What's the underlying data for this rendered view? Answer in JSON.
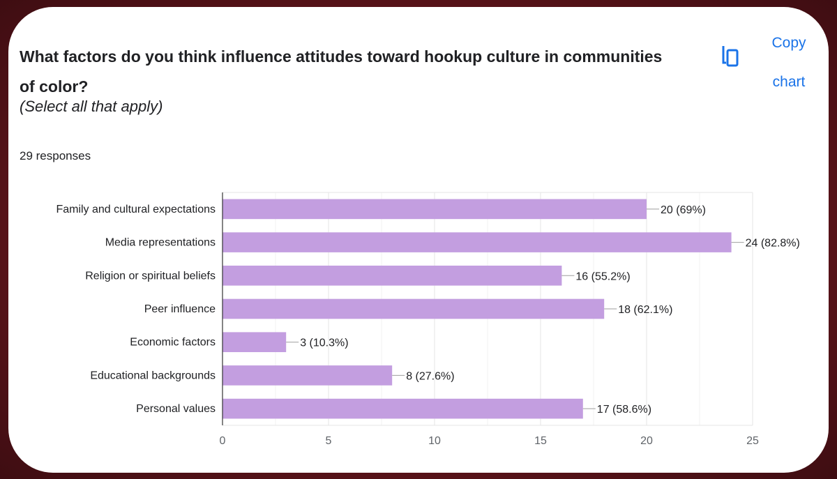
{
  "question": {
    "title": "What factors do you think influence attitudes toward hookup culture in communities of color?",
    "subtitle": "(Select all that apply)",
    "responses": "29 responses"
  },
  "copy_chart": {
    "label": "Copy chart",
    "icon": "copy-icon",
    "color": "#1a73e8"
  },
  "chart_data": {
    "type": "bar",
    "orientation": "horizontal",
    "categories": [
      "Family and cultural expectations",
      "Media representations",
      "Religion or spiritual beliefs",
      "Peer influence",
      "Economic factors",
      "Educational backgrounds",
      "Personal values"
    ],
    "values": [
      20,
      24,
      16,
      18,
      3,
      8,
      17
    ],
    "data_labels": [
      "20 (69%)",
      "24 (82.8%)",
      "16 (55.2%)",
      "18 (62.1%)",
      "3 (10.3%)",
      "8 (27.6%)",
      "17 (58.6%)"
    ],
    "xlim": [
      0,
      25
    ],
    "xticks": [
      0,
      5,
      10,
      15,
      20,
      25
    ],
    "grid": true,
    "bar_color": "#c39ee0",
    "title": "",
    "xlabel": "",
    "ylabel": ""
  }
}
